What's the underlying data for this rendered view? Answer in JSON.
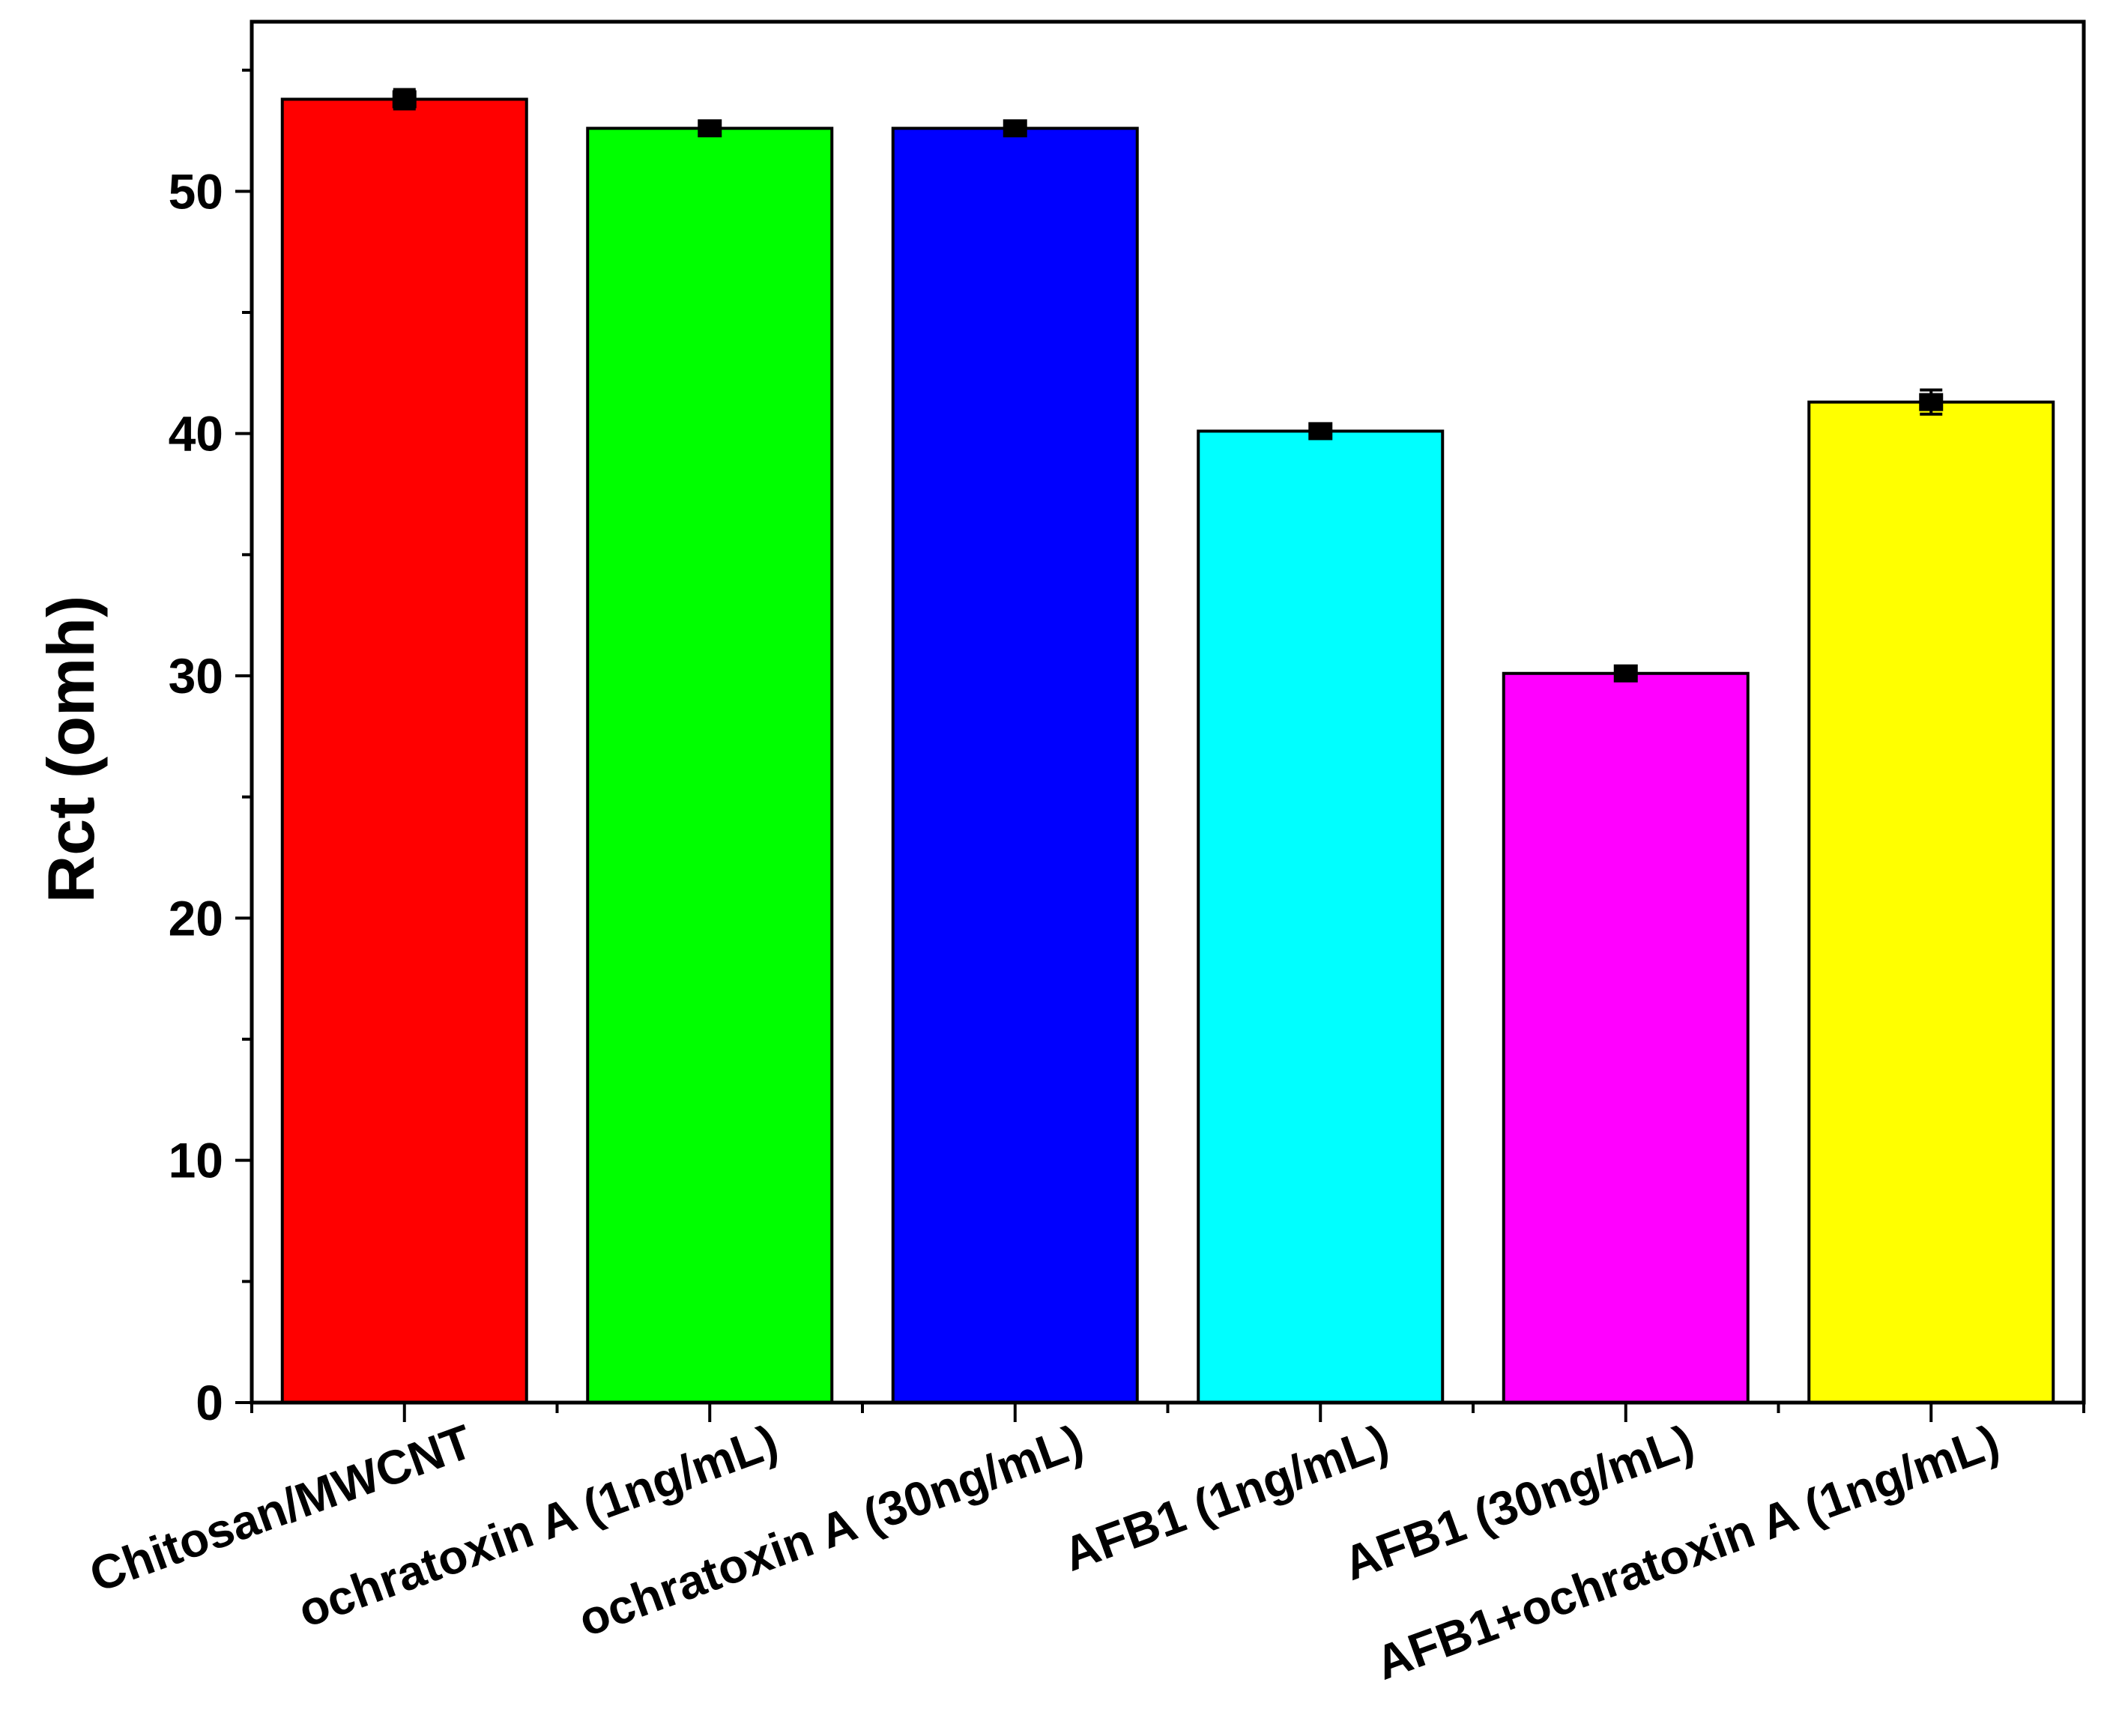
{
  "chart_data": {
    "type": "bar",
    "title": "",
    "xlabel": "",
    "ylabel": "Rct (omh)",
    "ylim": [
      0,
      57
    ],
    "yticks": [
      0,
      10,
      20,
      30,
      40,
      50
    ],
    "grid": false,
    "categories": [
      "Chitosan/MWCNT",
      "ochratoxin A (1ng/mL)",
      "ochratoxin A (30ng/mL)",
      "AFB1 (1ng/mL)",
      "AFB1 (30ng/mL)",
      "AFB1+ochratoxin A (1ng/mL)"
    ],
    "values": [
      53.8,
      52.6,
      52.6,
      40.1,
      30.1,
      41.3
    ],
    "errors": [
      0.4,
      0.2,
      0.3,
      0.2,
      0.2,
      0.5
    ],
    "colors": [
      "#ff0000",
      "#00ff00",
      "#0000ff",
      "#00ffff",
      "#ff00ff",
      "#ffff00"
    ]
  }
}
